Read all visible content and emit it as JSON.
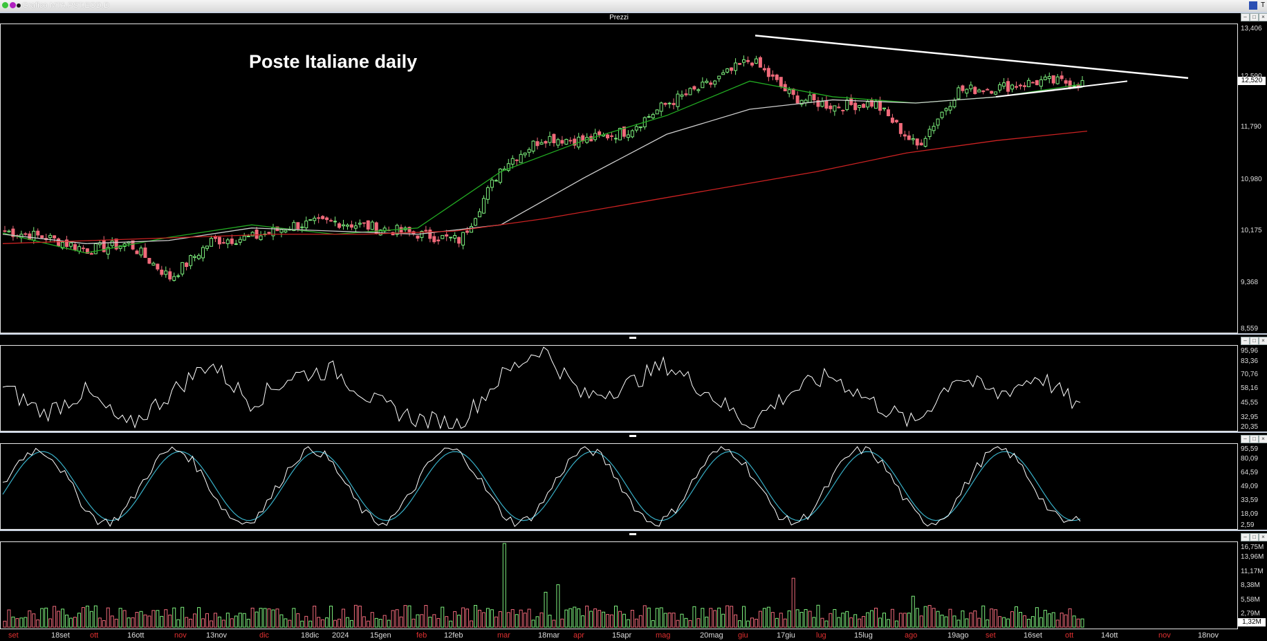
{
  "window": {
    "title": "Grafico MTA.PST.EOD.D"
  },
  "main_panel": {
    "label": "Prezzi",
    "chart_title": "Poste Italiane daily",
    "last_price": "12,520",
    "y_ticks": [
      "13,406",
      "12,590",
      "12,520",
      "11,790",
      "10,980",
      "10,175",
      "9,368",
      "8,559"
    ]
  },
  "rsi_panel": {
    "y_ticks": [
      "95,96",
      "83,36",
      "70,76",
      "58,16",
      "45,55",
      "32,95",
      "20,35"
    ]
  },
  "stoch_panel": {
    "y_ticks": [
      "95,59",
      "80,09",
      "64,59",
      "49,09",
      "33,59",
      "18,09",
      "2,59"
    ]
  },
  "volume_panel": {
    "y_ticks": [
      "16,75M",
      "13,96M",
      "11,17M",
      "8,38M",
      "5,58M",
      "2,79M",
      "1,32M"
    ]
  },
  "x_axis": [
    {
      "label": "set",
      "color": "#e03030"
    },
    {
      "label": "18set",
      "color": "#dddddd"
    },
    {
      "label": "ott",
      "color": "#e03030"
    },
    {
      "label": "16ott",
      "color": "#dddddd"
    },
    {
      "label": "nov",
      "color": "#e03030"
    },
    {
      "label": "13nov",
      "color": "#dddddd"
    },
    {
      "label": "dic",
      "color": "#e03030"
    },
    {
      "label": "18dic",
      "color": "#dddddd"
    },
    {
      "label": "2024",
      "color": "#dddddd"
    },
    {
      "label": "15gen",
      "color": "#dddddd"
    },
    {
      "label": "feb",
      "color": "#e03030"
    },
    {
      "label": "12feb",
      "color": "#dddddd"
    },
    {
      "label": "mar",
      "color": "#e03030"
    },
    {
      "label": "18mar",
      "color": "#dddddd"
    },
    {
      "label": "apr",
      "color": "#e03030"
    },
    {
      "label": "15apr",
      "color": "#dddddd"
    },
    {
      "label": "mag",
      "color": "#e03030"
    },
    {
      "label": "20mag",
      "color": "#dddddd"
    },
    {
      "label": "giu",
      "color": "#e03030"
    },
    {
      "label": "17giu",
      "color": "#dddddd"
    },
    {
      "label": "lug",
      "color": "#e03030"
    },
    {
      "label": "15lug",
      "color": "#dddddd"
    },
    {
      "label": "ago",
      "color": "#e03030"
    },
    {
      "label": "19ago",
      "color": "#dddddd"
    },
    {
      "label": "set",
      "color": "#e03030"
    },
    {
      "label": "16set",
      "color": "#dddddd"
    },
    {
      "label": "ott",
      "color": "#e03030"
    },
    {
      "label": "14ott",
      "color": "#dddddd"
    },
    {
      "label": "nov",
      "color": "#e03030"
    },
    {
      "label": "18nov",
      "color": "#dddddd"
    }
  ],
  "colors": {
    "up": "#7ef07e",
    "down": "#f06a7a",
    "ma_short": "#22aa22",
    "ma_mid": "#cfcfcf",
    "ma_long": "#cc2222",
    "stoch_k": "#ffffff",
    "stoch_d": "#38b0c8"
  },
  "chart_data": {
    "type": "candlestick",
    "title": "Poste Italiane daily",
    "ylim": [
      8.559,
      13.406
    ],
    "close_series": [
      {
        "date": "set",
        "close": 10.15
      },
      {
        "date": "18set",
        "close": 10.05
      },
      {
        "date": "ott",
        "close": 9.85
      },
      {
        "date": "16ott",
        "close": 9.95
      },
      {
        "date": "nov",
        "close": 9.4
      },
      {
        "date": "13nov",
        "close": 10.0
      },
      {
        "date": "dic",
        "close": 10.05
      },
      {
        "date": "18dic",
        "close": 10.25
      },
      {
        "date": "2024",
        "close": 10.3
      },
      {
        "date": "15gen",
        "close": 10.2
      },
      {
        "date": "feb",
        "close": 10.1
      },
      {
        "date": "12feb",
        "close": 10.0
      },
      {
        "date": "mar",
        "close": 11.2
      },
      {
        "date": "18mar",
        "close": 11.65
      },
      {
        "date": "apr",
        "close": 11.6
      },
      {
        "date": "15apr",
        "close": 11.75
      },
      {
        "date": "mag",
        "close": 12.2
      },
      {
        "date": "20mag",
        "close": 12.5
      },
      {
        "date": "giu",
        "close": 12.9
      },
      {
        "date": "17giu",
        "close": 12.3
      },
      {
        "date": "lug",
        "close": 12.15
      },
      {
        "date": "15lug",
        "close": 12.2
      },
      {
        "date": "ago",
        "close": 11.5
      },
      {
        "date": "19ago",
        "close": 12.4
      },
      {
        "date": "set",
        "close": 12.45
      },
      {
        "date": "16set",
        "close": 12.55
      },
      {
        "date": "ott",
        "close": 12.52
      }
    ],
    "moving_averages": [
      {
        "name": "short",
        "values": [
          10.12,
          9.8,
          10.05,
          10.25,
          10.1,
          10.2,
          11.1,
          11.6,
          12.0,
          12.55,
          12.3,
          12.2,
          12.3,
          12.5
        ]
      },
      {
        "name": "mid",
        "values": [
          10.1,
          9.95,
          10.0,
          10.2,
          10.15,
          10.1,
          10.25,
          11.0,
          11.7,
          12.1,
          12.25,
          12.2,
          12.3,
          12.45
        ]
      },
      {
        "name": "long",
        "values": [
          9.95,
          10.0,
          10.05,
          10.1,
          10.1,
          10.15,
          10.35,
          10.6,
          10.85,
          11.1,
          11.4,
          11.6,
          11.75
        ]
      }
    ]
  }
}
